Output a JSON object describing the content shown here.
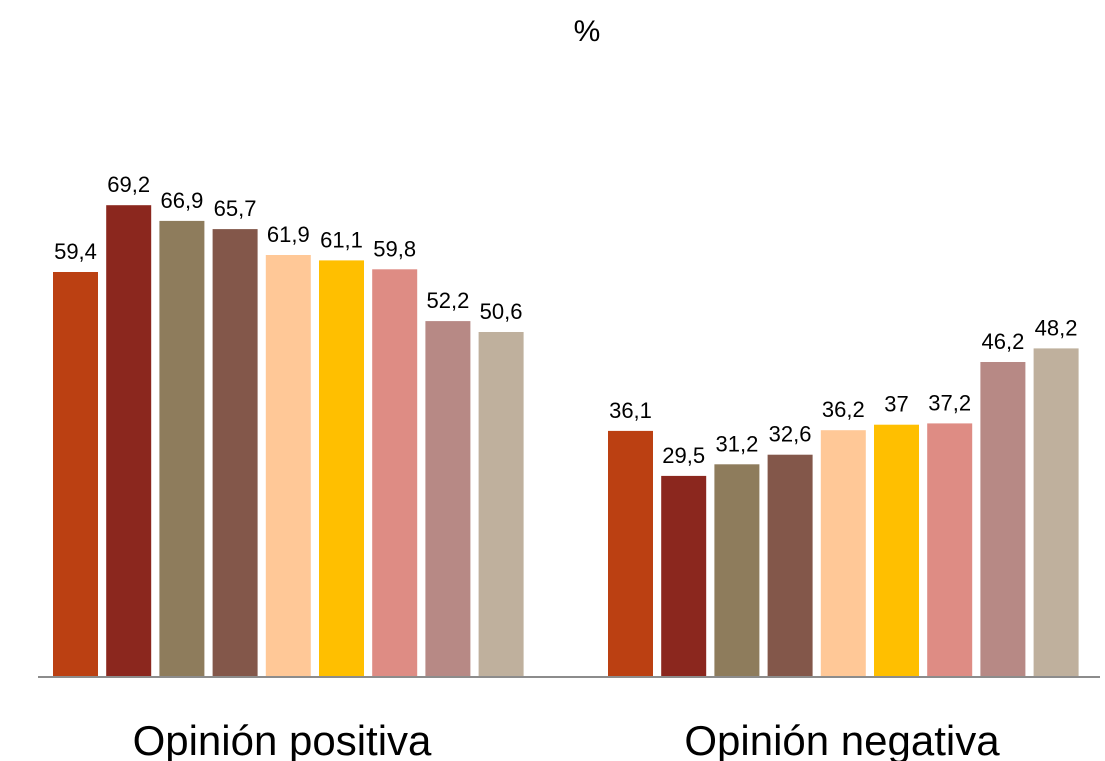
{
  "chart_data": {
    "type": "bar",
    "title": "%",
    "categories": [
      "Opinión positiva",
      "Opinión negativa"
    ],
    "series": [
      {
        "values": [
          59.4,
          36.1
        ],
        "labels": [
          "59,4",
          "36,1"
        ],
        "color": "#BB4012"
      },
      {
        "values": [
          69.2,
          29.5
        ],
        "labels": [
          "69,2",
          "29,5"
        ],
        "color": "#8B271E"
      },
      {
        "values": [
          66.9,
          31.2
        ],
        "labels": [
          "66,9",
          "31,2"
        ],
        "color": "#8E7C5C"
      },
      {
        "values": [
          65.7,
          32.6
        ],
        "labels": [
          "65,7",
          "32,6"
        ],
        "color": "#83574A"
      },
      {
        "values": [
          61.9,
          36.2
        ],
        "labels": [
          "61,9",
          "36,2"
        ],
        "color": "#FFC897"
      },
      {
        "values": [
          61.1,
          37.0
        ],
        "labels": [
          "61,1",
          "37"
        ],
        "color": "#FFBF00"
      },
      {
        "values": [
          59.8,
          37.2
        ],
        "labels": [
          "59,8",
          "37,2"
        ],
        "color": "#DE8C84"
      },
      {
        "values": [
          52.2,
          46.2
        ],
        "labels": [
          "52,2",
          "46,2"
        ],
        "color": "#B78985"
      },
      {
        "values": [
          50.6,
          48.2
        ],
        "labels": [
          "50,6",
          "48,2"
        ],
        "color": "#BFB09D"
      }
    ],
    "ylim": [
      0,
      85
    ],
    "grid": false,
    "legend": "none",
    "axis_color": "#8C8C8C"
  }
}
